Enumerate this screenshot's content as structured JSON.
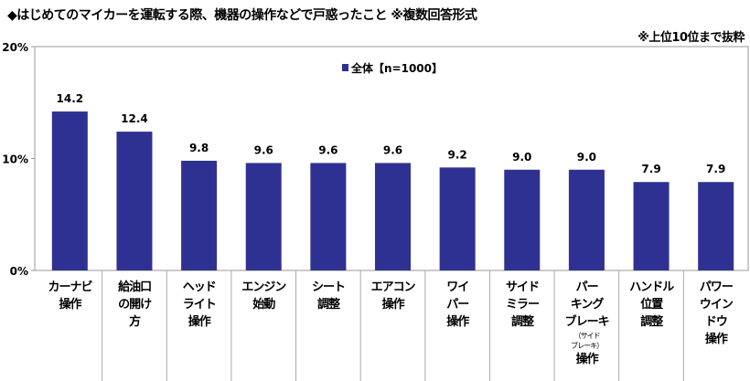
{
  "title": "◆はじめてのマイカーを運転する際、機器の操作などで戸惑ったこと ※複数回答形式",
  "note": "※上位10位まで抜粋",
  "chart_data": {
    "type": "bar",
    "title": "◆はじめてのマイカーを運転する際、機器の操作などで戸惑ったこと ※複数回答形式",
    "categories": [
      "カーナビ\n操作",
      "給油口\nの開け\n方",
      "ヘッド\nライト\n操作",
      "エンジン\n始動",
      "シート\n調整",
      "エアコン\n操作",
      "ワイ\nパー\n操作",
      "サイド\nミラー\n調整",
      "パー\nキング\nブレーキ",
      "ハンドル\n位置\n調整",
      "パワー\nウイン\nドウ\n操作"
    ],
    "category_sub": {
      "8": {
        "sub": "（サイド\nブレーキ）",
        "after": "操作"
      }
    },
    "series": [
      {
        "name": "全体【n=1000】",
        "values": [
          14.2,
          12.4,
          9.8,
          9.6,
          9.6,
          9.6,
          9.2,
          9.0,
          9.0,
          7.9,
          7.9
        ],
        "color": "#2e3192"
      }
    ],
    "value_labels": [
      "14.2",
      "12.4",
      "9.8",
      "9.6",
      "9.6",
      "9.6",
      "9.2",
      "9.0",
      "9.0",
      "7.9",
      "7.9"
    ],
    "ylim": [
      0,
      20
    ],
    "yticks": [
      0,
      10,
      20
    ],
    "ytick_labels": [
      "0%",
      "10%",
      "20%"
    ],
    "legend": "top-center",
    "grid": false,
    "xlabel": "",
    "ylabel": ""
  }
}
